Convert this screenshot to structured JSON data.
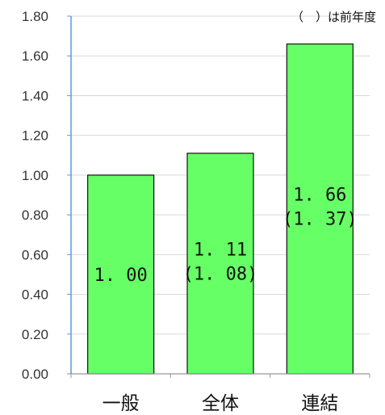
{
  "note": "（　）は前年度",
  "chart_data": {
    "type": "bar",
    "categories": [
      "一般",
      "全体",
      "連結"
    ],
    "values": [
      1.0,
      1.11,
      1.66
    ],
    "value_labels": [
      "1. 00",
      "1. 11",
      "1. 66"
    ],
    "previous_labels": [
      "",
      "(1. 08)",
      "(1. 37)"
    ],
    "previous_values": [
      null,
      1.08,
      1.37
    ],
    "title": "",
    "xlabel": "",
    "ylabel": "",
    "ylim": [
      0,
      1.8
    ],
    "yticks": [
      "0.00",
      "0.20",
      "0.40",
      "0.60",
      "0.80",
      "1.00",
      "1.20",
      "1.40",
      "1.60",
      "1.80"
    ],
    "ytick_values": [
      0,
      0.2,
      0.4,
      0.6,
      0.8,
      1.0,
      1.2,
      1.4,
      1.6,
      1.8
    ],
    "grid": true,
    "bar_color": "#66ff66",
    "grid_color": "#d9d9d9",
    "axis_color": "#5b9bd5"
  }
}
